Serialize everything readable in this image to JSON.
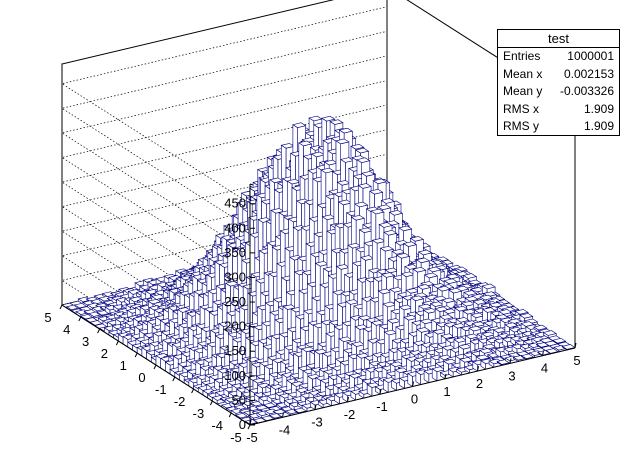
{
  "chart_data": {
    "type": "lego3d",
    "title": "test",
    "x_ticks": [
      "-5",
      "-4",
      "-3",
      "-2",
      "-1",
      "0",
      "1",
      "2",
      "3",
      "4",
      "5"
    ],
    "y_ticks": [
      "-5",
      "-4",
      "-3",
      "-2",
      "-1",
      "0",
      "1",
      "2",
      "3",
      "4",
      "5"
    ],
    "z_ticks": [
      "0",
      "50",
      "100",
      "150",
      "200",
      "250",
      "300",
      "350",
      "400",
      "450"
    ],
    "xlim": [
      -5,
      5
    ],
    "ylim": [
      -5,
      5
    ],
    "zlim": [
      0,
      490
    ],
    "bins": [
      40,
      40
    ],
    "peak": 395,
    "sigma": 1.9,
    "bar_color": "#000080",
    "stats": {
      "title": "test",
      "rows": [
        {
          "label": "Entries",
          "value": "1000001"
        },
        {
          "label": "Mean x",
          "value": "0.002153"
        },
        {
          "label": "Mean y",
          "value": "-0.003326"
        },
        {
          "label": "RMS x",
          "value": "1.909"
        },
        {
          "label": "RMS y",
          "value": "1.909"
        }
      ]
    }
  }
}
